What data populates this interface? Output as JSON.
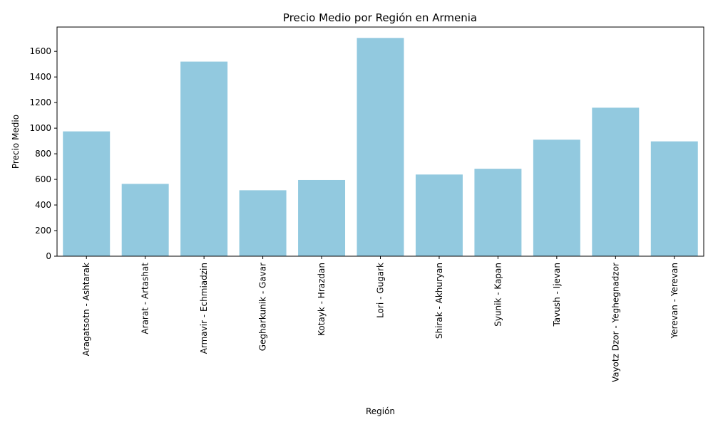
{
  "chart_data": {
    "type": "bar",
    "title": "Precio Medio por Región en Armenia",
    "xlabel": "Región",
    "ylabel": "Precio Medio",
    "categories": [
      "Aragatsotn - Ashtarak",
      "Ararat - Artashat",
      "Armavir - Echmiadzin",
      "Gegharkunik - Gavar",
      "Kotayk - Hrazdan",
      "Lori - Gugark",
      "Shirak - Akhuryan",
      "Syunik - Kapan",
      "Tavush - Ijevan",
      "Vayotz Dzor - Yeghegnadzor",
      "Yerevan - Yerevan"
    ],
    "values": [
      975,
      565,
      1520,
      515,
      595,
      1705,
      638,
      683,
      910,
      1160,
      897
    ],
    "yticks": [
      0,
      200,
      400,
      600,
      800,
      1000,
      1200,
      1400,
      1600
    ],
    "ylim": [
      0,
      1790
    ],
    "grid": false,
    "bar_color": "#92c9df"
  }
}
